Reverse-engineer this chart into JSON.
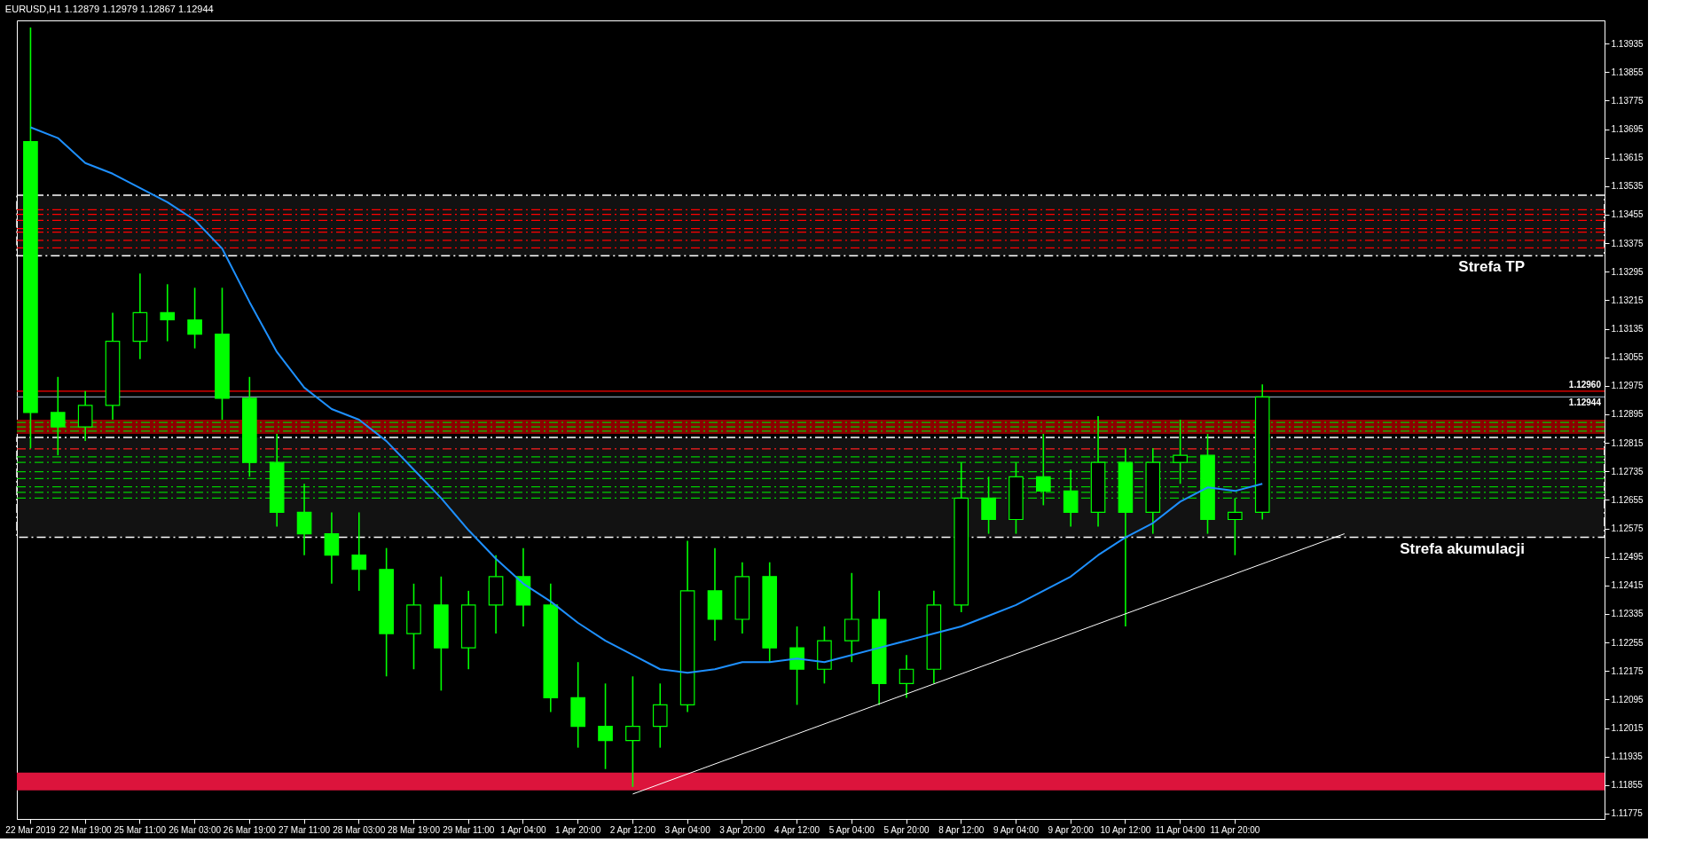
{
  "chart_data": {
    "type": "candlestick",
    "title": "EURUSD,H1  1.12879 1.12979 1.12867 1.12944",
    "categories": [
      "22 Mar 2019",
      null,
      "22 Mar 19:00",
      null,
      "25 Mar 11:00",
      null,
      "26 Mar 03:00",
      null,
      "26 Mar 19:00",
      null,
      "27 Mar 11:00",
      null,
      "28 Mar 03:00",
      null,
      "28 Mar 19:00",
      null,
      "29 Mar 11:00",
      null,
      "1 Apr 04:00",
      null,
      "1 Apr 20:00",
      null,
      "2 Apr 12:00",
      null,
      "3 Apr 04:00",
      null,
      "3 Apr 20:00",
      null,
      "4 Apr 12:00",
      null,
      "5 Apr 04:00",
      null,
      "5 Apr 20:00",
      null,
      "8 Apr 12:00",
      null,
      "9 Apr 04:00",
      null,
      "9 Apr 20:00",
      null,
      "10 Apr 12:00",
      null,
      "11 Apr 04:00",
      null,
      "11 Apr 20:00",
      null,
      null,
      null,
      null,
      null,
      null,
      null,
      null,
      null,
      null,
      null,
      null,
      null
    ],
    "ylim": [
      1.1176,
      1.14
    ],
    "yticks": [
      1.13935,
      1.13855,
      1.13775,
      1.13695,
      1.13615,
      1.13535,
      1.13455,
      1.13375,
      1.13295,
      1.13215,
      1.13135,
      1.13055,
      1.12975,
      1.12895,
      1.12815,
      1.12735,
      1.12655,
      1.12575,
      1.12495,
      1.12415,
      1.12335,
      1.12255,
      1.12175,
      1.12095,
      1.12015,
      1.11935,
      1.11855,
      1.11775
    ],
    "grid": false,
    "series": [
      {
        "type": "candlestick",
        "color": "#00ff00",
        "ohlc": [
          [
            1.1366,
            1.1398,
            1.128,
            1.129
          ],
          [
            1.129,
            1.13,
            1.1278,
            1.1286
          ],
          [
            1.1286,
            1.1296,
            1.1282,
            1.1292
          ],
          [
            1.1292,
            1.1318,
            1.1288,
            1.131
          ],
          [
            1.131,
            1.1329,
            1.1305,
            1.1318
          ],
          [
            1.1318,
            1.1326,
            1.131,
            1.1316
          ],
          [
            1.1316,
            1.1325,
            1.1308,
            1.1312
          ],
          [
            1.1312,
            1.1325,
            1.1288,
            1.1294
          ],
          [
            1.1294,
            1.13,
            1.1272,
            1.1276
          ],
          [
            1.1276,
            1.1284,
            1.1258,
            1.1262
          ],
          [
            1.1262,
            1.127,
            1.125,
            1.1256
          ],
          [
            1.1256,
            1.1262,
            1.1242,
            1.125
          ],
          [
            1.125,
            1.1262,
            1.124,
            1.1246
          ],
          [
            1.1246,
            1.1252,
            1.1216,
            1.1228
          ],
          [
            1.1228,
            1.1242,
            1.1218,
            1.1236
          ],
          [
            1.1236,
            1.1244,
            1.1212,
            1.1224
          ],
          [
            1.1224,
            1.124,
            1.1218,
            1.1236
          ],
          [
            1.1236,
            1.125,
            1.1228,
            1.1244
          ],
          [
            1.1244,
            1.1252,
            1.123,
            1.1236
          ],
          [
            1.1236,
            1.1242,
            1.1206,
            1.121
          ],
          [
            1.121,
            1.122,
            1.1196,
            1.1202
          ],
          [
            1.1202,
            1.1214,
            1.119,
            1.1198
          ],
          [
            1.1198,
            1.1216,
            1.1185,
            1.1202
          ],
          [
            1.1202,
            1.1214,
            1.1196,
            1.1208
          ],
          [
            1.1208,
            1.1254,
            1.1206,
            1.124
          ],
          [
            1.124,
            1.1252,
            1.1226,
            1.1232
          ],
          [
            1.1232,
            1.1248,
            1.1228,
            1.1244
          ],
          [
            1.1244,
            1.1248,
            1.122,
            1.1224
          ],
          [
            1.1224,
            1.123,
            1.1208,
            1.1218
          ],
          [
            1.1218,
            1.123,
            1.1214,
            1.1226
          ],
          [
            1.1226,
            1.1245,
            1.122,
            1.1232
          ],
          [
            1.1232,
            1.124,
            1.1208,
            1.1214
          ],
          [
            1.1214,
            1.1222,
            1.121,
            1.1218
          ],
          [
            1.1218,
            1.124,
            1.1214,
            1.1236
          ],
          [
            1.1236,
            1.1276,
            1.1234,
            1.1266
          ],
          [
            1.1266,
            1.1272,
            1.1256,
            1.126
          ],
          [
            1.126,
            1.1276,
            1.1256,
            1.1272
          ],
          [
            1.1272,
            1.1284,
            1.1264,
            1.1268
          ],
          [
            1.1268,
            1.1274,
            1.1258,
            1.1262
          ],
          [
            1.1262,
            1.1289,
            1.1258,
            1.1276
          ],
          [
            1.1276,
            1.128,
            1.123,
            1.1262
          ],
          [
            1.1262,
            1.128,
            1.1256,
            1.1276
          ],
          [
            1.1276,
            1.1288,
            1.127,
            1.1278
          ],
          [
            1.1278,
            1.1284,
            1.1256,
            1.126
          ],
          [
            1.126,
            1.1266,
            1.125,
            1.1262
          ],
          [
            1.1262,
            1.12979,
            1.126,
            1.12944
          ],
          null,
          null,
          null,
          null,
          null,
          null,
          null,
          null,
          null,
          null,
          null,
          null
        ]
      },
      {
        "type": "line",
        "color": "#1e90ff",
        "values": [
          1.137,
          1.1367,
          1.136,
          1.1357,
          1.1353,
          1.1349,
          1.1344,
          1.1336,
          1.1321,
          1.1307,
          1.1297,
          1.1291,
          1.1288,
          1.1282,
          1.1274,
          1.1266,
          1.1257,
          1.1249,
          1.1242,
          1.1237,
          1.1231,
          1.1226,
          1.1222,
          1.1218,
          1.1217,
          1.1218,
          1.122,
          1.122,
          1.1221,
          1.122,
          1.1222,
          1.1224,
          1.1226,
          1.1228,
          1.123,
          1.1233,
          1.1236,
          1.124,
          1.1244,
          1.125,
          1.1255,
          1.1259,
          1.1265,
          1.1269,
          1.1268,
          1.127,
          null,
          null,
          null,
          null,
          null,
          null,
          null,
          null,
          null,
          null,
          null,
          null
        ]
      },
      {
        "type": "line",
        "color": "#ffffff",
        "values": [
          null,
          null,
          null,
          null,
          null,
          null,
          null,
          null,
          null,
          null,
          null,
          null,
          null,
          null,
          null,
          null,
          null,
          null,
          null,
          null,
          null,
          null,
          1.1183,
          null,
          null,
          null,
          null,
          null,
          null,
          null,
          null,
          null,
          null,
          null,
          null,
          null,
          null,
          null,
          null,
          null,
          null,
          null,
          null,
          null,
          null,
          null,
          null,
          null,
          1.1256,
          null,
          null,
          null,
          null,
          null,
          null,
          null,
          null,
          null
        ]
      }
    ],
    "ref_lines": [
      {
        "axis": "y",
        "value": 1.1296,
        "label": "1.12960",
        "color": "#ff0000",
        "line_style": "solid"
      },
      {
        "axis": "y",
        "value": 1.12944,
        "label": "1.12944",
        "color": "#8899aa",
        "line_style": "solid"
      },
      {
        "axis": "y",
        "value": 1.13469,
        "color": "#ff0000",
        "line_style": "dashed"
      },
      {
        "axis": "y",
        "value": 1.13456,
        "color": "#ff0000",
        "line_style": "dashed"
      },
      {
        "axis": "y",
        "value": 1.13439,
        "color": "#ff0000",
        "line_style": "dashed"
      },
      {
        "axis": "y",
        "value": 1.13416,
        "color": "#ff0000",
        "line_style": "dashed"
      },
      {
        "axis": "y",
        "value": 1.13406,
        "color": "#ff0000",
        "line_style": "dashed"
      },
      {
        "axis": "y",
        "value": 1.13383,
        "color": "#ff0000",
        "line_style": "dashed"
      },
      {
        "axis": "y",
        "value": 1.13362,
        "color": "#ff0000",
        "line_style": "dashed"
      },
      {
        "axis": "y",
        "value": 1.12872,
        "color": "#00cc00",
        "line_style": "dashed"
      },
      {
        "axis": "y",
        "value": 1.1286,
        "color": "#00cc00",
        "line_style": "dashed"
      },
      {
        "axis": "y",
        "value": 1.12848,
        "color": "#00cc00",
        "line_style": "dashed"
      },
      {
        "axis": "y",
        "value": 1.12798,
        "color": "#ff2020",
        "line_style": "dashed"
      },
      {
        "axis": "y",
        "value": 1.12776,
        "color": "#00cc00",
        "line_style": "dashed"
      },
      {
        "axis": "y",
        "value": 1.1276,
        "color": "#00cc00",
        "line_style": "dashed"
      },
      {
        "axis": "y",
        "value": 1.12734,
        "color": "#00cc00",
        "line_style": "dashed"
      },
      {
        "axis": "y",
        "value": 1.12715,
        "color": "#00cc00",
        "line_style": "dashed"
      },
      {
        "axis": "y",
        "value": 1.12692,
        "color": "#00cc00",
        "line_style": "dashed"
      },
      {
        "axis": "y",
        "value": 1.12676,
        "color": "#00cc00",
        "line_style": "dashed"
      },
      {
        "axis": "y",
        "value": 1.1266,
        "color": "#00cc00",
        "line_style": "dashed"
      }
    ],
    "bands": [
      {
        "axis": "y",
        "from": 1.1334,
        "to": 1.1351,
        "label": "Strefa TP",
        "color": "#ffffff"
      },
      {
        "axis": "y",
        "from": 1.1255,
        "to": 1.1283,
        "label": "Strefa akumulacji",
        "color": "#ffffff"
      },
      {
        "axis": "y",
        "from": 1.1284,
        "to": 1.1288,
        "color": "#8b0000"
      },
      {
        "axis": "y",
        "from": 1.1184,
        "to": 1.1189,
        "color": "#dc143c"
      }
    ]
  }
}
